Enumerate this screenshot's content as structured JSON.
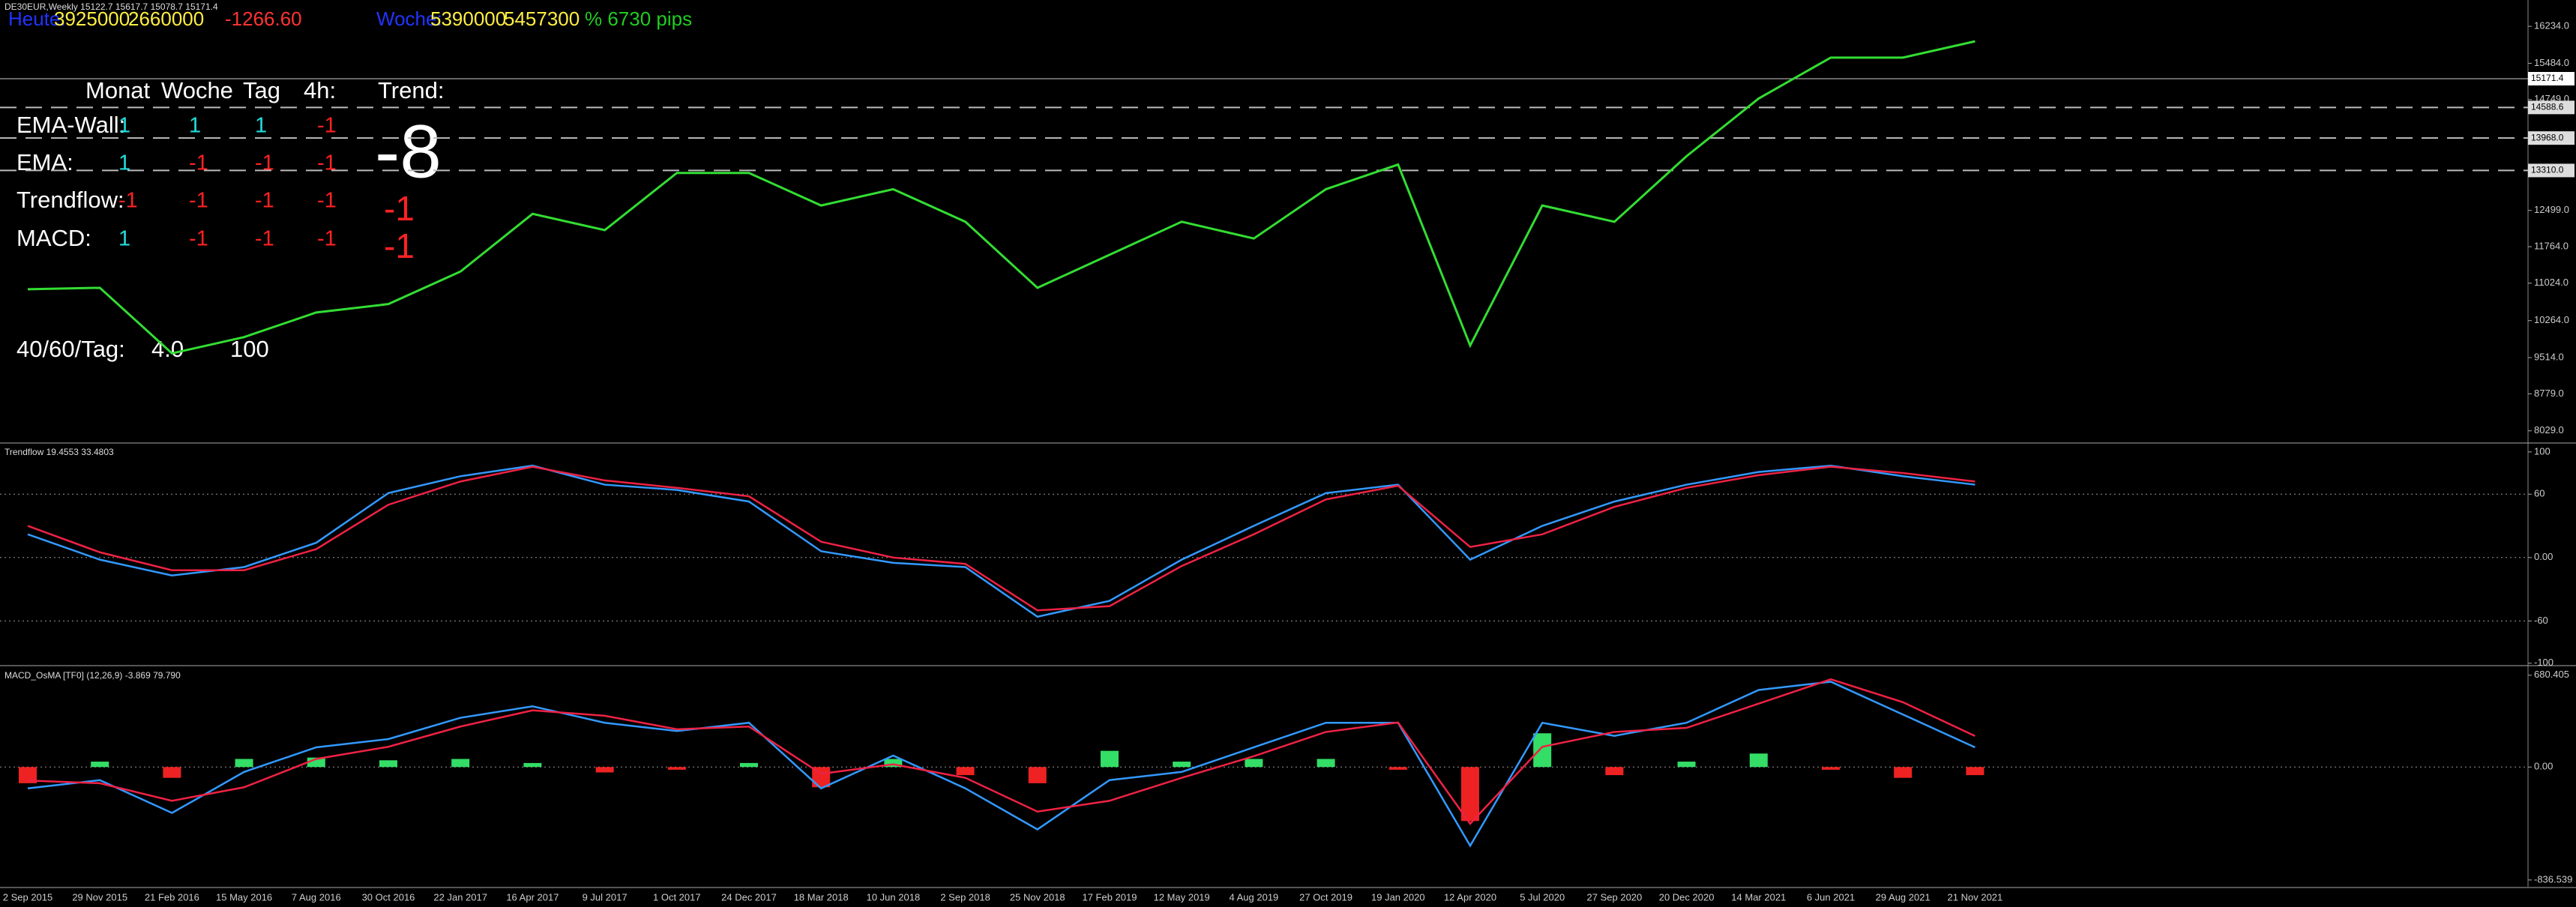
{
  "header": {
    "symbol": "DE30EUR,Weekly  15122.7 15617.7 15078.7 15171.4",
    "today": [
      "Heute:",
      "3925000",
      "2660000",
      "-1266.60"
    ],
    "week": [
      "Woche:",
      "5390000",
      "5457300",
      "% 6730 pips"
    ]
  },
  "dashboard": {
    "columns": [
      "Monat",
      "Woche",
      "Tag",
      "4h:",
      "Trend:"
    ],
    "rows": [
      {
        "label": "EMA-Wall:",
        "values": [
          1,
          1,
          1,
          -1
        ]
      },
      {
        "label": "EMA:",
        "values": [
          1,
          -1,
          -1,
          -1
        ]
      },
      {
        "label": "Trendflow:",
        "values": [
          -1,
          -1,
          -1,
          -1
        ]
      },
      {
        "label": "MACD:",
        "values": [
          1,
          -1,
          -1,
          -1
        ]
      }
    ],
    "trend_total": -8,
    "trend_sub": [
      -1,
      -1
    ],
    "footer": {
      "label": "40/60/Tag:",
      "values": [
        "4.0",
        100
      ]
    }
  },
  "x_categories": [
    "2 Sep 2015",
    "29 Nov 2015",
    "21 Feb 2016",
    "15 May 2016",
    "7 Aug 2016",
    "30 Oct 2016",
    "22 Jan 2017",
    "16 Apr 2017",
    "9 Jul 2017",
    "1 Oct 2017",
    "24 Dec 2017",
    "18 Mar 2018",
    "10 Jun 2018",
    "2 Sep 2018",
    "25 Nov 2018",
    "17 Feb 2019",
    "12 May 2019",
    "4 Aug 2019",
    "27 Oct 2019",
    "19 Jan 2020",
    "12 Apr 2020",
    "5 Jul 2020",
    "27 Sep 2020",
    "20 Dec 2020",
    "14 Mar 2021",
    "6 Jun 2021",
    "29 Aug 2021",
    "21 Nov 2021"
  ],
  "chart_data": [
    {
      "type": "line",
      "ylim": [
        7797,
        16768
      ],
      "yticks": [
        {
          "value": 16234,
          "label": "16234.0"
        },
        {
          "value": 15484,
          "label": "15484.0"
        },
        {
          "value": 14749,
          "label": "14749.0"
        },
        {
          "value": 12499,
          "label": "12499.0"
        },
        {
          "value": 11764,
          "label": "11764.0"
        },
        {
          "value": 11024,
          "label": "11024.0"
        },
        {
          "value": 10264,
          "label": "10264.0"
        },
        {
          "value": 9514,
          "label": "9514.0"
        },
        {
          "value": 8779,
          "label": "8779.0"
        },
        {
          "value": 8029,
          "label": "8029.0"
        }
      ],
      "price_line": 15171.4,
      "levels": [
        14588.6,
        {
          "value": 13968,
          "label": "13968.0"
        },
        {
          "value": 13310,
          "label": "13310.0"
        }
      ],
      "series": [
        {
          "color": "#33dd33",
          "values": [
            10900,
            10930,
            9600,
            9930,
            10430,
            10600,
            11260,
            12430,
            12100,
            13260,
            13260,
            12600,
            12930,
            12270,
            10930,
            11600,
            12270,
            11930,
            12930,
            13430,
            9760,
            12600,
            12270,
            13600,
            14770,
            15600,
            15600,
            15930
          ]
        }
      ]
    },
    {
      "type": "line",
      "title": "Trendflow 19.4553 33.4803",
      "ylim": [
        -101.6,
        106.3
      ],
      "yticks": [
        100,
        60,
        {
          "value": 0,
          "label": "0.00"
        },
        -60,
        -100
      ],
      "grid_at": [
        60,
        0,
        -60
      ],
      "series": [
        {
          "color": "#3399ff",
          "values": [
            22,
            -2,
            -17,
            -9,
            14,
            61,
            77,
            87,
            69,
            64,
            53,
            6,
            -5,
            -9,
            -56,
            -41,
            -2,
            30,
            61,
            69,
            -2,
            30,
            53,
            69,
            81,
            87,
            77,
            69
          ]
        },
        {
          "color": "#ee2244",
          "values": [
            30,
            5,
            -12,
            -12,
            8,
            50,
            72,
            86,
            73,
            66,
            58,
            15,
            0,
            -6,
            -50,
            -46,
            -8,
            22,
            55,
            68,
            10,
            22,
            48,
            66,
            78,
            86,
            80,
            72
          ]
        }
      ]
    },
    {
      "type": "macd",
      "title": "MACD_OsMA [TF0] (12,26,9)  -3.869 79.790",
      "ylim": [
        -887,
        729
      ],
      "yticks": [
        680.405,
        {
          "value": 0,
          "label": "0.00"
        },
        -836.539
      ],
      "grid_at": [
        0
      ],
      "histogram": {
        "up_color": "#33dd66",
        "down_color": "#ee2222",
        "values": [
          -120,
          40,
          -80,
          60,
          70,
          50,
          60,
          30,
          -40,
          -20,
          30,
          -150,
          60,
          -60,
          -120,
          120,
          40,
          60,
          60,
          -20,
          -400,
          250,
          -60,
          40,
          100,
          -20,
          -80,
          -60
        ]
      },
      "series": [
        {
          "color": "#3399ff",
          "values": [
            -158,
            -97,
            -340,
            -36,
            146,
            207,
            365,
            450,
            328,
            267,
            328,
            -158,
            85,
            -158,
            -462,
            -97,
            -36,
            146,
            328,
            328,
            -583,
            328,
            231,
            328,
            571,
            632,
            389,
            146
          ]
        },
        {
          "color": "#ee2244",
          "values": [
            -100,
            -120,
            -250,
            -150,
            60,
            150,
            300,
            420,
            380,
            280,
            300,
            -50,
            20,
            -80,
            -330,
            -250,
            -80,
            80,
            260,
            330,
            -420,
            150,
            260,
            290,
            470,
            650,
            480,
            230
          ]
        }
      ]
    }
  ]
}
